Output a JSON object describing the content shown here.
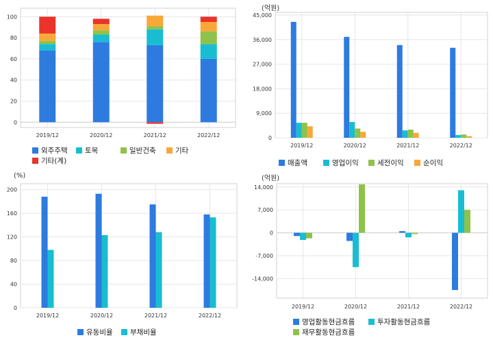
{
  "colors": {
    "blue": "#2e7be0",
    "cyan": "#19bdd1",
    "green": "#8ec24a",
    "orange": "#f7a839",
    "red": "#e8342a",
    "grid": "#e6e6e6",
    "frame": "#d0d0d0"
  },
  "chart_data": [
    {
      "type": "bar",
      "stacked": true,
      "unit": "",
      "categories": [
        "2019/12",
        "2020/12",
        "2021/12",
        "2022/12"
      ],
      "yticks": [
        "0",
        "20",
        "40",
        "60",
        "80",
        "100"
      ],
      "ylim": [
        -5,
        108
      ],
      "grid": true,
      "series": [
        {
          "name": "외주주택",
          "color": "blue",
          "values": [
            68,
            76,
            73,
            60
          ]
        },
        {
          "name": "토목",
          "color": "cyan",
          "values": [
            6,
            7,
            15,
            14
          ]
        },
        {
          "name": "일반건축",
          "color": "green",
          "values": [
            3,
            4,
            3,
            12
          ]
        },
        {
          "name": "기타",
          "color": "orange",
          "values": [
            7,
            6,
            10,
            9
          ]
        },
        {
          "name": "기타(계)",
          "color": "red",
          "values": [
            16,
            5,
            -1.5,
            5
          ]
        }
      ]
    },
    {
      "type": "bar",
      "unit": "(억원)",
      "categories": [
        "2019/12",
        "2020/12",
        "2021/12",
        "2022/12"
      ],
      "yticks": [
        "0",
        "9,000",
        "18,000",
        "27,000",
        "36,000",
        "45,000"
      ],
      "ylim": [
        0,
        46000
      ],
      "grid": true,
      "series": [
        {
          "name": "매출액",
          "color": "blue",
          "values": [
            42500,
            37000,
            34000,
            33000
          ]
        },
        {
          "name": "영업이익",
          "color": "cyan",
          "values": [
            5500,
            5800,
            2700,
            1000
          ]
        },
        {
          "name": "세전이익",
          "color": "green",
          "values": [
            5500,
            3400,
            3000,
            1200
          ]
        },
        {
          "name": "순이익",
          "color": "orange",
          "values": [
            4200,
            2200,
            1800,
            600
          ]
        }
      ]
    },
    {
      "type": "bar",
      "unit": "(%)",
      "categories": [
        "2019/12",
        "2020/12",
        "2021/12",
        "2022/12"
      ],
      "yticks": [
        "0",
        "40",
        "80",
        "120",
        "160",
        "200"
      ],
      "ylim": [
        0,
        210
      ],
      "grid": true,
      "series": [
        {
          "name": "유동비율",
          "color": "blue",
          "values": [
            188,
            193,
            175,
            158
          ]
        },
        {
          "name": "부채비율",
          "color": "cyan",
          "values": [
            98,
            123,
            128,
            153
          ]
        }
      ]
    },
    {
      "type": "bar",
      "unit": "(억원)",
      "categories": [
        "2019/12",
        "2020/12",
        "2021/12",
        "2022/12"
      ],
      "yticks": [
        "-14,000",
        "-7,000",
        "0",
        "7,000",
        "14,000"
      ],
      "ylim": [
        -20000,
        15000
      ],
      "grid": true,
      "series": [
        {
          "name": "영업활동현금흐름",
          "color": "blue",
          "values": [
            -1000,
            -2500,
            500,
            -17500
          ]
        },
        {
          "name": "투자활동현금흐름",
          "color": "cyan",
          "values": [
            -2200,
            -10500,
            -1400,
            13000
          ]
        },
        {
          "name": "재무활동현금흐름",
          "color": "green",
          "values": [
            -1700,
            14800,
            -400,
            7000
          ]
        }
      ]
    }
  ]
}
